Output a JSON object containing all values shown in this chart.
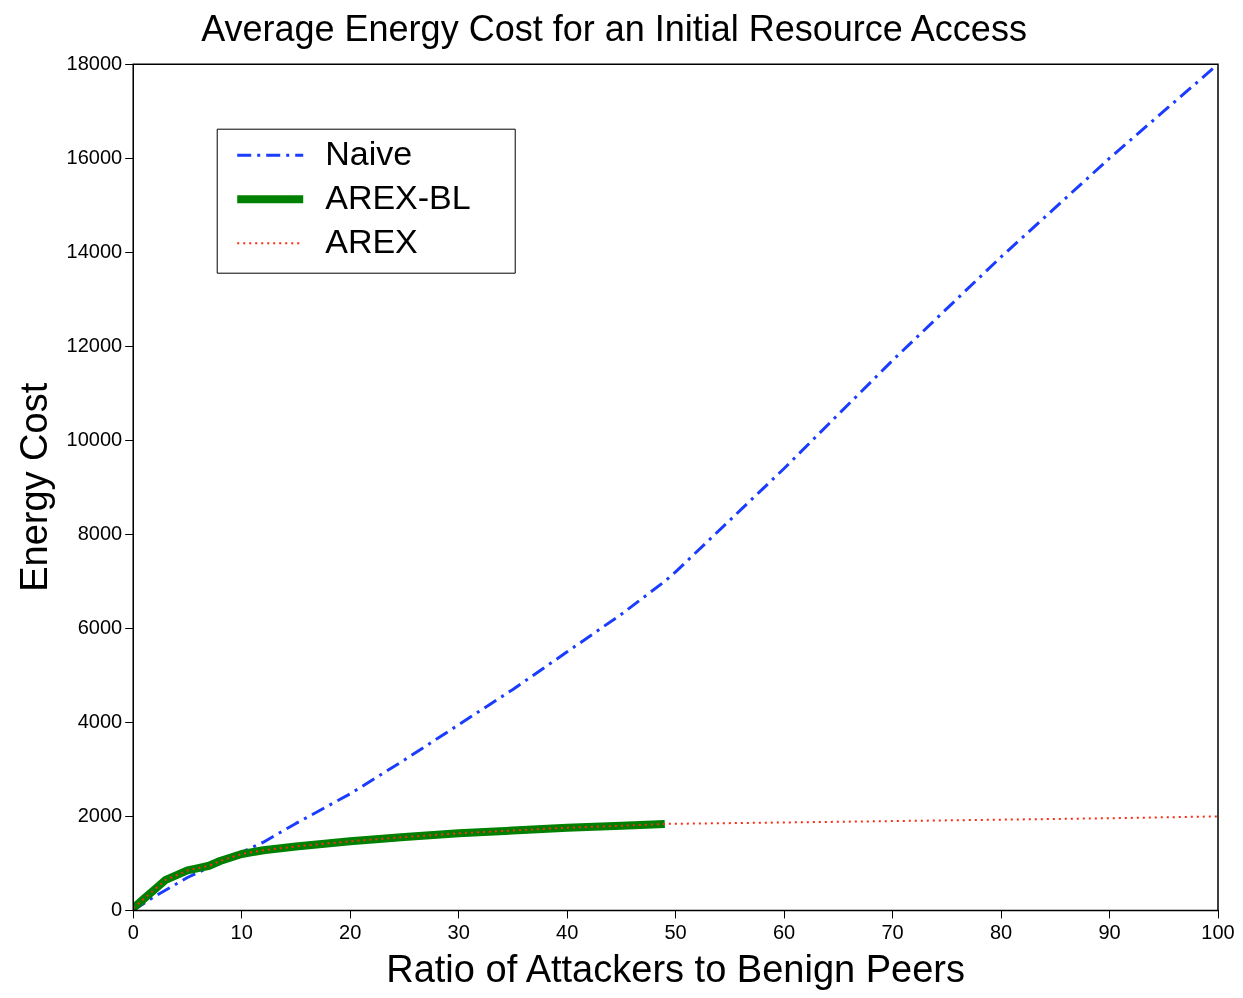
{
  "chart_data": {
    "type": "line",
    "title": "Average Energy Cost for an Initial Resource Access",
    "xlabel": "Ratio of Attackers to Benign Peers",
    "ylabel": "Energy Cost",
    "xlim": [
      0,
      100
    ],
    "xticks": [
      0,
      10,
      20,
      30,
      40,
      50,
      60,
      70,
      80,
      90,
      100
    ],
    "ylim": [
      0,
      18000
    ],
    "yticks": [
      0,
      2000,
      4000,
      6000,
      8000,
      10000,
      12000,
      14000,
      16000,
      18000
    ],
    "grid": false,
    "legend": "top left",
    "marker": "none",
    "series": [
      {
        "name": "Naive",
        "color": "#1a3cff",
        "line_style": "dashdot",
        "x": [
          0,
          2,
          5,
          12,
          15,
          20,
          25,
          30,
          35,
          40,
          45,
          49,
          50,
          55,
          60,
          65,
          70,
          75,
          80,
          85,
          90,
          95,
          100
        ],
        "values": [
          0,
          300,
          700,
          1450,
          1850,
          2480,
          3200,
          3950,
          4700,
          5500,
          6300,
          7000,
          7200,
          8300,
          9400,
          10550,
          11700,
          12800,
          13900,
          14950,
          16000,
          17000,
          18000
        ]
      },
      {
        "name": "AREX-BL",
        "color": "#008000",
        "line_style": "solid",
        "x": [
          0,
          1,
          2,
          3,
          4,
          5,
          6,
          7,
          8,
          10,
          12,
          15,
          20,
          25,
          30,
          35,
          40,
          45,
          49
        ],
        "values": [
          50,
          250,
          450,
          650,
          750,
          850,
          900,
          950,
          1050,
          1200,
          1280,
          1360,
          1470,
          1560,
          1640,
          1700,
          1760,
          1800,
          1840
        ]
      },
      {
        "name": "AREX",
        "color": "#ff2a10",
        "line_style": "dotted",
        "x": [
          0,
          1,
          2,
          3,
          4,
          5,
          6,
          7,
          8,
          10,
          12,
          15,
          20,
          25,
          30,
          35,
          40,
          45,
          49,
          60,
          70,
          80,
          90,
          100
        ],
        "values": [
          50,
          250,
          450,
          650,
          750,
          850,
          900,
          950,
          1050,
          1200,
          1280,
          1360,
          1470,
          1560,
          1640,
          1700,
          1760,
          1800,
          1840,
          1870,
          1900,
          1930,
          1960,
          2000
        ]
      }
    ]
  }
}
